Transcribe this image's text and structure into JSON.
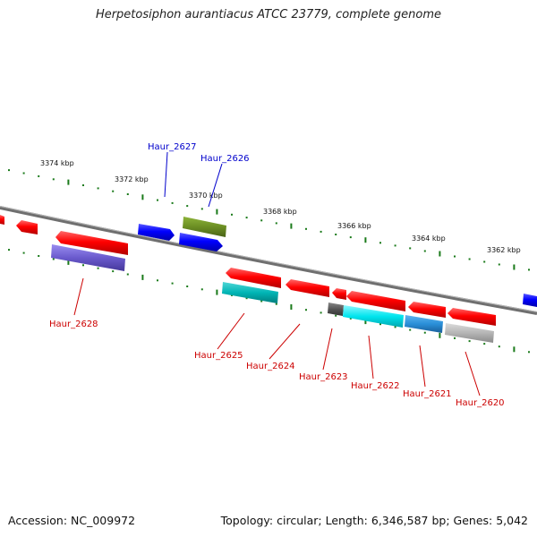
{
  "title": "Herpetosiphon aurantiacus ATCC 23779, complete genome",
  "footer": {
    "accession": "Accession: NC_009972",
    "summary": "Topology: circular; Length: 6,346,587 bp; Genes: 5,042"
  },
  "kbp_labels": [
    "3374 kbp",
    "3372 kbp",
    "3370 kbp",
    "3368 kbp",
    "3366 kbp",
    "3364 kbp",
    "3362 kbp"
  ],
  "gene_labels": {
    "forward": [
      "Haur_2627",
      "Haur_2626"
    ],
    "reverse": [
      "Haur_2628",
      "Haur_2625",
      "Haur_2624",
      "Haur_2623",
      "Haur_2622",
      "Haur_2621",
      "Haur_2620"
    ]
  },
  "colors": {
    "forward_label": "#0000cc",
    "reverse_label": "#cc0000",
    "ticks": "#1a7a1a",
    "backbone": "#808080",
    "cds_red": "#ff0000",
    "cds_blue": "#0000ff",
    "olive": "#6b8e23",
    "cyan": "#00e5ee",
    "teal": "#00b5b5",
    "purple": "#6a5acd",
    "gray": "#b0b0b0",
    "dark_gray": "#555555",
    "steel_blue": "#4682b4"
  }
}
